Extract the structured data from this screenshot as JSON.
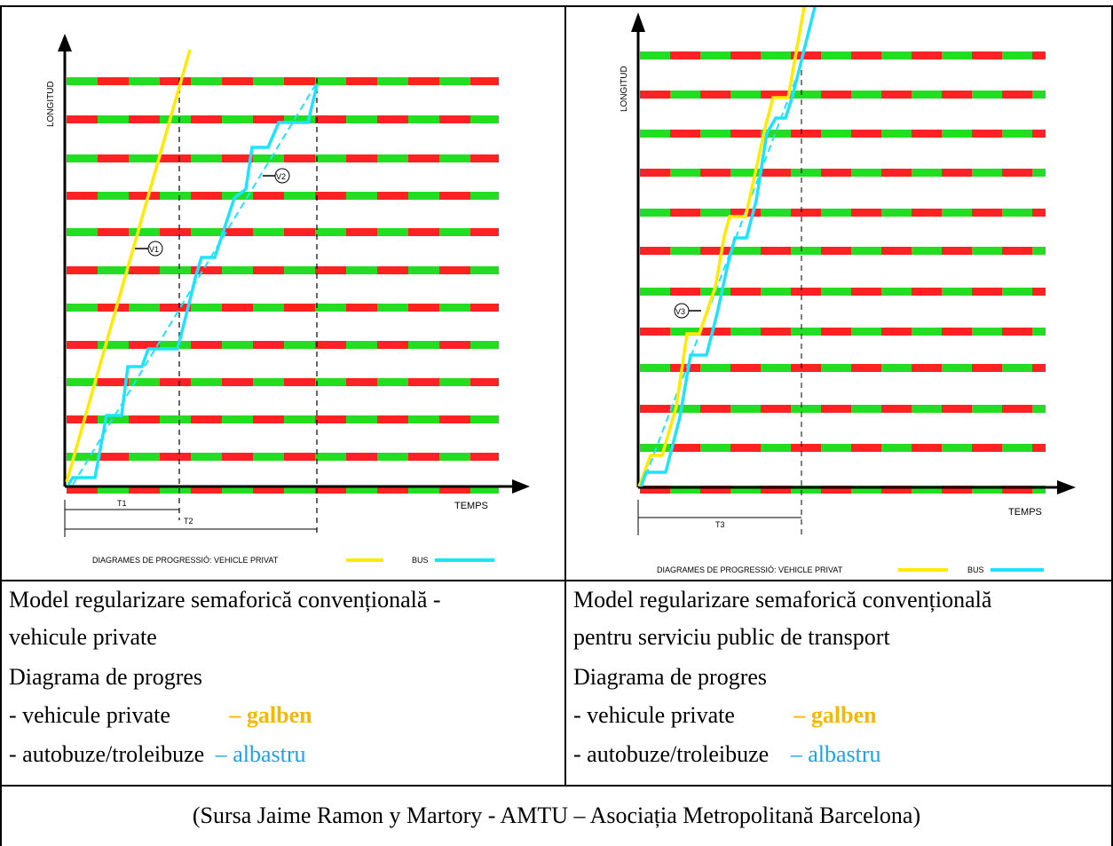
{
  "colors": {
    "green": "#22dd22",
    "red": "#ff2222",
    "yellow": "#ffea00",
    "blue": "#1ee3ff",
    "caption_yellow": "#f5b800",
    "caption_blue": "#1aa3e8"
  },
  "left_diagram": {
    "y_axis_label": "LONGITUD",
    "x_axis_label": "TEMPS",
    "t1_label": "T1",
    "t2_label": "T2",
    "v1_label": "V1",
    "v2_label": "V2",
    "legend_prefix": "DIAGRAMES DE PROGRESSIÓ:  VEHICLE PRIVAT",
    "legend_bus": "BUS"
  },
  "right_diagram": {
    "y_axis_label": "LONGITUD",
    "x_axis_label": "TEMPS",
    "t3_label": "T3",
    "v3_label": "V3",
    "legend_prefix": "DIAGRAMES DE PROGRESSIÓ:  VEHICLE PRIVAT",
    "legend_bus": "BUS"
  },
  "left_caption": {
    "line1": "Model regularizare semaforică convențională -",
    "line2": "vehicule private",
    "line3": "Diagrama de progres",
    "line4_text": "- vehicule private",
    "line4_color": "– galben",
    "line5_text": "- autobuze/troleibuze",
    "line5_color": "– albastru"
  },
  "right_caption": {
    "line1": "Model regularizare semaforică convențională",
    "line2": "pentru serviciu public de transport",
    "line3": "Diagrama de progres",
    "line4_text": "- vehicule private",
    "line4_color": "– galben",
    "line5_text": "- autobuze/troleibuze",
    "line5_color": "– albastru"
  },
  "source_text": "(Sursa Jaime Ramon y Martory -  AMTU – Asociația Metropolitană Barcelona)"
}
